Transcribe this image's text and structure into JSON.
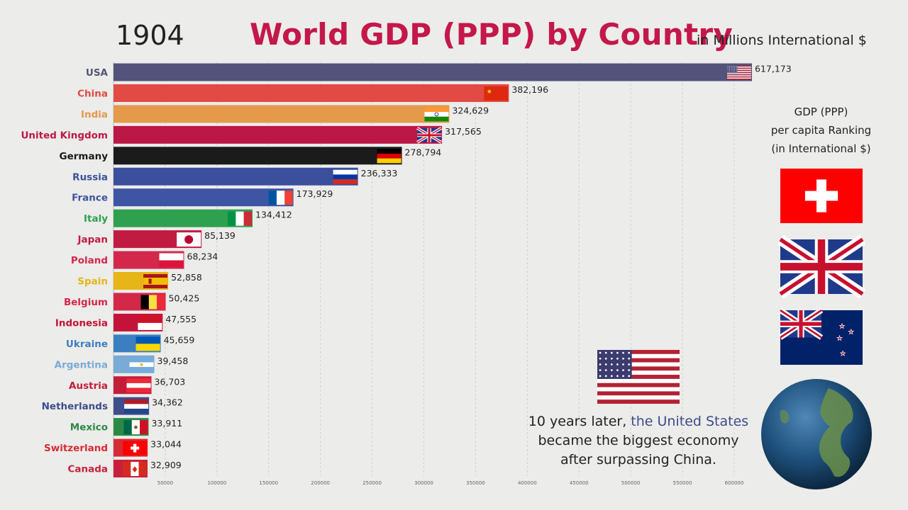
{
  "header": {
    "year": "1904",
    "title": "World GDP (PPP) by Country",
    "units": "in Millions International $"
  },
  "side_panel": {
    "title_line1": "GDP (PPP)",
    "title_line2": "per capita Ranking",
    "title_line3": "(in International $)",
    "flags": [
      "swiss-flag-icon",
      "uk-flag-icon",
      "new-zealand-flag-icon"
    ]
  },
  "caption": {
    "line1_pre": "10 years later, ",
    "line1_highlight": "the United States",
    "line2": "became the biggest economy",
    "line3": "after surpassing China."
  },
  "colors": {
    "title": "#c4174a",
    "highlight": "#3e4b8a",
    "background": "#ececea"
  },
  "chart_data": {
    "type": "bar",
    "orientation": "horizontal",
    "title": "World GDP (PPP) by Country",
    "categories": [
      "USA",
      "China",
      "India",
      "United Kingdom",
      "Germany",
      "Russia",
      "France",
      "Italy",
      "Japan",
      "Poland",
      "Spain",
      "Belgium",
      "Indonesia",
      "Ukraine",
      "Argentina",
      "Austria",
      "Netherlands",
      "Mexico",
      "Switzerland",
      "Canada"
    ],
    "values": [
      617173,
      382196,
      324629,
      317565,
      278794,
      236333,
      173929,
      134412,
      85139,
      68234,
      52858,
      50425,
      47555,
      45659,
      39458,
      36703,
      34362,
      33911,
      33044,
      32909
    ],
    "value_labels": [
      "617,173",
      "382,196",
      "324,629",
      "317,565",
      "278,794",
      "236,333",
      "173,929",
      "134,412",
      "85,139",
      "68,234",
      "52,858",
      "50,425",
      "47,555",
      "45,659",
      "39,458",
      "36,703",
      "34,362",
      "33,911",
      "33,044",
      "32,909"
    ],
    "bar_colors": [
      "#52527a",
      "#e14b43",
      "#e4994b",
      "#bc1847",
      "#1b1b1b",
      "#3c4f9c",
      "#3d55a2",
      "#2ea04f",
      "#c21b42",
      "#d3284c",
      "#e7b517",
      "#d42848",
      "#c41339",
      "#3c7fc0",
      "#7aaad6",
      "#c41d3a",
      "#3d4e8c",
      "#2a8a44",
      "#d52b34",
      "#c8203a"
    ],
    "label_colors": [
      "#555577",
      "#e14b43",
      "#e4994b",
      "#bc1847",
      "#1b1b1b",
      "#3c4f9c",
      "#3d55a2",
      "#2ea04f",
      "#c21b42",
      "#d3284c",
      "#e7b517",
      "#d42848",
      "#c41339",
      "#3c7fc0",
      "#7aaad6",
      "#c41d3a",
      "#3d4e8c",
      "#2a8a44",
      "#d52b34",
      "#c8203a"
    ],
    "flags": [
      "usa-flag-icon",
      "china-flag-icon",
      "india-flag-icon",
      "uk-flag-icon",
      "germany-flag-icon",
      "russia-flag-icon",
      "france-flag-icon",
      "italy-flag-icon",
      "japan-flag-icon",
      "poland-flag-icon",
      "spain-flag-icon",
      "belgium-flag-icon",
      "indonesia-flag-icon",
      "ukraine-flag-icon",
      "argentina-flag-icon",
      "austria-flag-icon",
      "netherlands-flag-icon",
      "mexico-flag-icon",
      "switzerland-flag-icon",
      "canada-flag-icon"
    ],
    "x_ticks": [
      50000,
      100000,
      150000,
      200000,
      250000,
      300000,
      350000,
      400000,
      450000,
      500000,
      550000,
      600000
    ],
    "x_tick_labels": [
      "50000",
      "100000",
      "150000",
      "200000",
      "250000",
      "300000",
      "350000",
      "400000",
      "450000",
      "500000",
      "550000",
      "600000"
    ],
    "xlim": [
      0,
      617173
    ],
    "grid": true
  }
}
